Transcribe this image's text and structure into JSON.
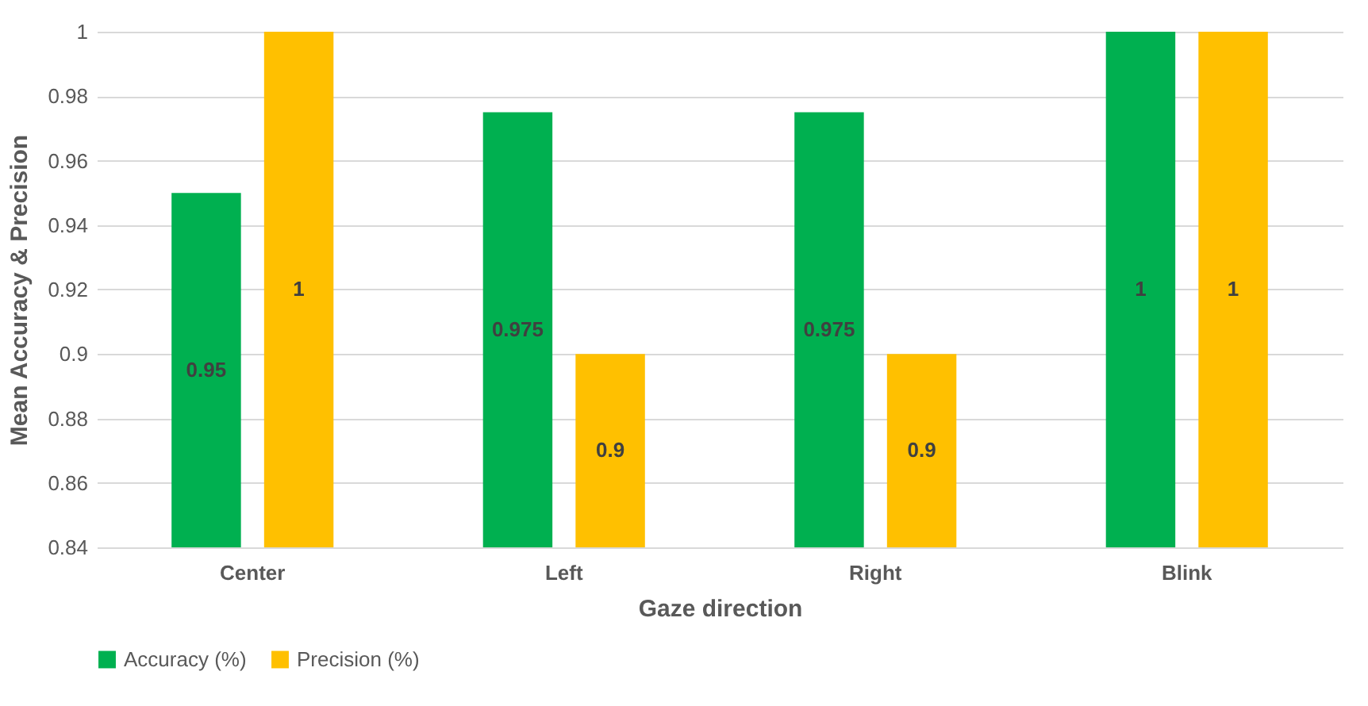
{
  "chart_data": {
    "type": "bar",
    "xlabel": "Gaze direction",
    "ylabel": "Mean Accuracy & Precision",
    "categories": [
      "Center",
      "Left",
      "Right",
      "Blink"
    ],
    "series": [
      {
        "name": "Accuracy (%)",
        "color": "#00b050",
        "values": [
          0.95,
          0.975,
          0.975,
          1
        ]
      },
      {
        "name": "Precision (%)",
        "color": "#ffc000",
        "values": [
          1,
          0.9,
          0.9,
          1
        ]
      }
    ],
    "ylim": [
      0.84,
      1
    ],
    "yticks": [
      0.84,
      0.86,
      0.88,
      0.9,
      0.92,
      0.94,
      0.96,
      0.98,
      1
    ],
    "grid": "y",
    "legend": "bottom",
    "data_labels": true
  }
}
